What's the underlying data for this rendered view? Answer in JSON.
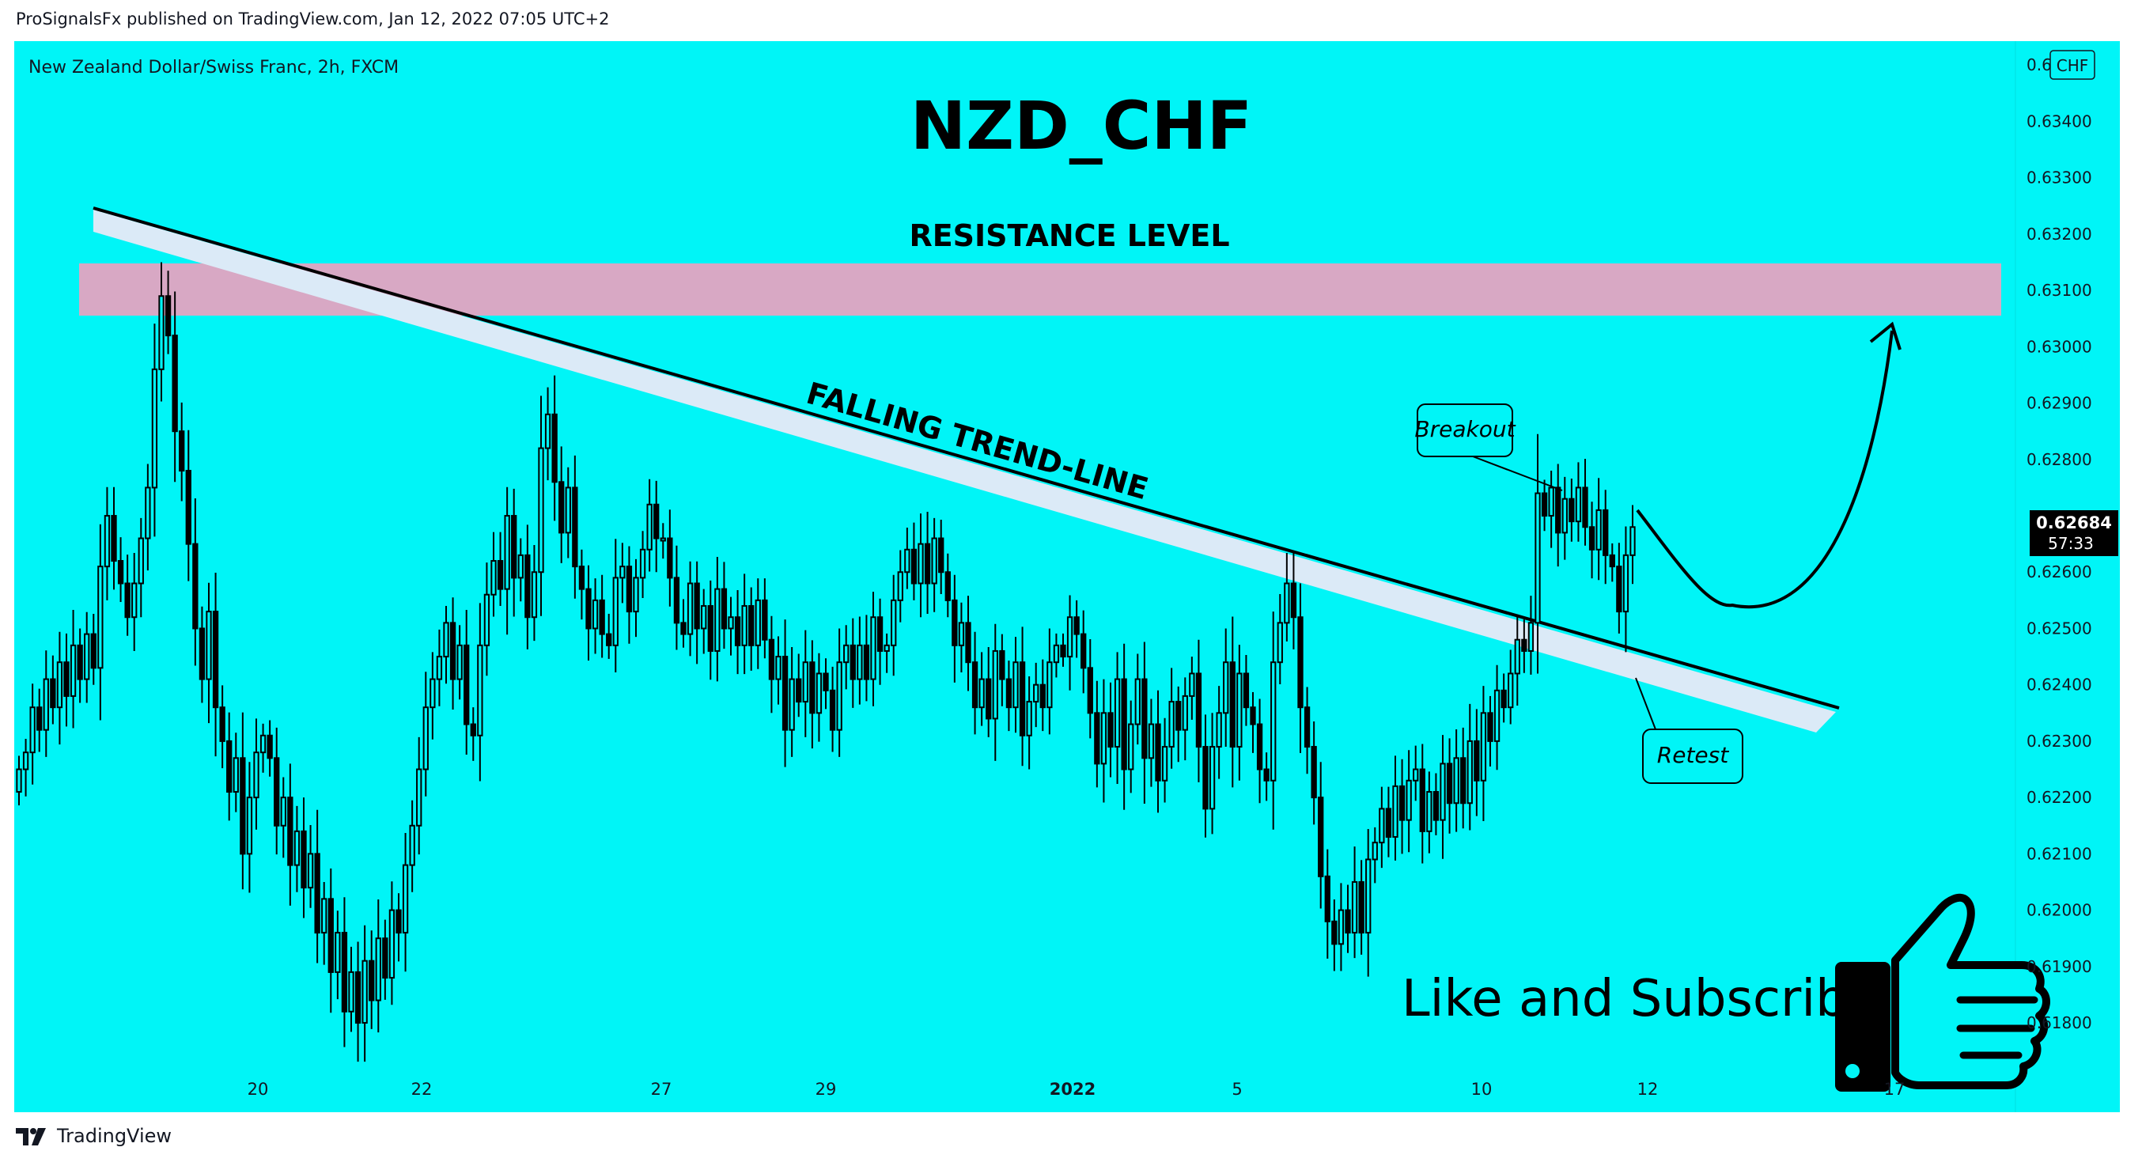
{
  "publish_info": "ProSignalsFx published on TradingView.com, Jan 12, 2022 07:05 UTC+2",
  "symbol_info": "New Zealand Dollar/Swiss Franc, 2h, FXCM",
  "currency_badge": "CHF",
  "brand": "TradingView",
  "colors": {
    "background": "#00f5f7",
    "candle": "#000000",
    "resistance_zone": "#d8a8c4",
    "trendline_band": "#dbeaf7",
    "price_tag_bg": "#000000"
  },
  "chart_data": {
    "type": "candlestick",
    "title": "NZD_CHF",
    "yaxis": {
      "position": "right",
      "ticks": [
        "0.63500",
        "0.63400",
        "0.63300",
        "0.63200",
        "0.63100",
        "0.63000",
        "0.62900",
        "0.62800",
        "0.62600",
        "0.62500",
        "0.62400",
        "0.62300",
        "0.62200",
        "0.62100",
        "0.62000",
        "0.61900",
        "0.61800"
      ],
      "range": [
        0.6172,
        0.6352
      ]
    },
    "xaxis": {
      "ticks": [
        "20",
        "22",
        "27",
        "29",
        "2022",
        "5",
        "10",
        "12",
        "17"
      ]
    },
    "current_price": {
      "value": "0.62684",
      "countdown": "57:33"
    },
    "closes": [
      0.6225,
      0.6228,
      0.6236,
      0.6232,
      0.6241,
      0.6236,
      0.6244,
      0.6238,
      0.6247,
      0.6241,
      0.6249,
      0.6243,
      0.6261,
      0.627,
      0.6262,
      0.6258,
      0.6252,
      0.6258,
      0.6266,
      0.6275,
      0.6296,
      0.6309,
      0.6302,
      0.6285,
      0.6278,
      0.6265,
      0.625,
      0.6241,
      0.6253,
      0.6236,
      0.623,
      0.6221,
      0.6227,
      0.621,
      0.622,
      0.6228,
      0.6231,
      0.6227,
      0.6215,
      0.622,
      0.6208,
      0.6214,
      0.6204,
      0.621,
      0.6196,
      0.6202,
      0.6189,
      0.6196,
      0.6182,
      0.6189,
      0.618,
      0.6191,
      0.6184,
      0.6195,
      0.6188,
      0.62,
      0.6196,
      0.6208,
      0.6215,
      0.6225,
      0.6236,
      0.6241,
      0.6245,
      0.6251,
      0.6241,
      0.6247,
      0.6233,
      0.6231,
      0.6247,
      0.6256,
      0.6262,
      0.6257,
      0.627,
      0.6259,
      0.6263,
      0.6252,
      0.626,
      0.6282,
      0.6288,
      0.6276,
      0.6267,
      0.6275,
      0.6261,
      0.6257,
      0.625,
      0.6255,
      0.6249,
      0.6247,
      0.6259,
      0.6261,
      0.6253,
      0.6259,
      0.6264,
      0.6272,
      0.6266,
      0.6266,
      0.6259,
      0.6251,
      0.6249,
      0.6258,
      0.625,
      0.6254,
      0.6246,
      0.6257,
      0.625,
      0.6252,
      0.6247,
      0.6254,
      0.6247,
      0.6255,
      0.6248,
      0.6241,
      0.6245,
      0.6232,
      0.6241,
      0.6237,
      0.6244,
      0.6235,
      0.6242,
      0.6239,
      0.6232,
      0.6244,
      0.6247,
      0.6241,
      0.6247,
      0.6241,
      0.6252,
      0.6246,
      0.6247,
      0.6255,
      0.626,
      0.6264,
      0.6258,
      0.6265,
      0.6258,
      0.6266,
      0.626,
      0.6255,
      0.6247,
      0.6251,
      0.6244,
      0.6236,
      0.6241,
      0.6234,
      0.6246,
      0.6241,
      0.6236,
      0.6244,
      0.6231,
      0.6237,
      0.624,
      0.6236,
      0.6244,
      0.6247,
      0.6245,
      0.6252,
      0.6249,
      0.6243,
      0.6235,
      0.6226,
      0.6235,
      0.6229,
      0.6241,
      0.6225,
      0.6233,
      0.6241,
      0.6227,
      0.6233,
      0.6223,
      0.6229,
      0.6237,
      0.6232,
      0.6238,
      0.6242,
      0.6229,
      0.6218,
      0.6229,
      0.6235,
      0.6244,
      0.6229,
      0.6242,
      0.6236,
      0.6233,
      0.6225,
      0.6223,
      0.6244,
      0.6251,
      0.6258,
      0.6252,
      0.6236,
      0.6229,
      0.622,
      0.6206,
      0.6198,
      0.6194,
      0.62,
      0.6196,
      0.6205,
      0.6196,
      0.6209,
      0.6212,
      0.6218,
      0.6213,
      0.6222,
      0.6216,
      0.6223,
      0.6225,
      0.6214,
      0.6221,
      0.6216,
      0.6226,
      0.6219,
      0.6227,
      0.6219,
      0.623,
      0.6223,
      0.6235,
      0.623,
      0.6239,
      0.6236,
      0.6242,
      0.6248,
      0.6246,
      0.6251,
      0.6274,
      0.627,
      0.6275,
      0.6267,
      0.6273,
      0.6269,
      0.6275,
      0.6268,
      0.6264,
      0.6271,
      0.6263,
      0.6261,
      0.6253,
      0.6263,
      0.6268
    ]
  },
  "annotations": {
    "resistance_label": "RESISTANCE LEVEL",
    "trendline_label": "FALLING TREND-LINE",
    "breakout_label": "Breakout",
    "retest_label": "Retest",
    "cta_text": "Like and Subscribe"
  },
  "icons": {
    "thumbs_up": "thumbs-up-icon",
    "logo": "tradingview-logo-icon"
  }
}
